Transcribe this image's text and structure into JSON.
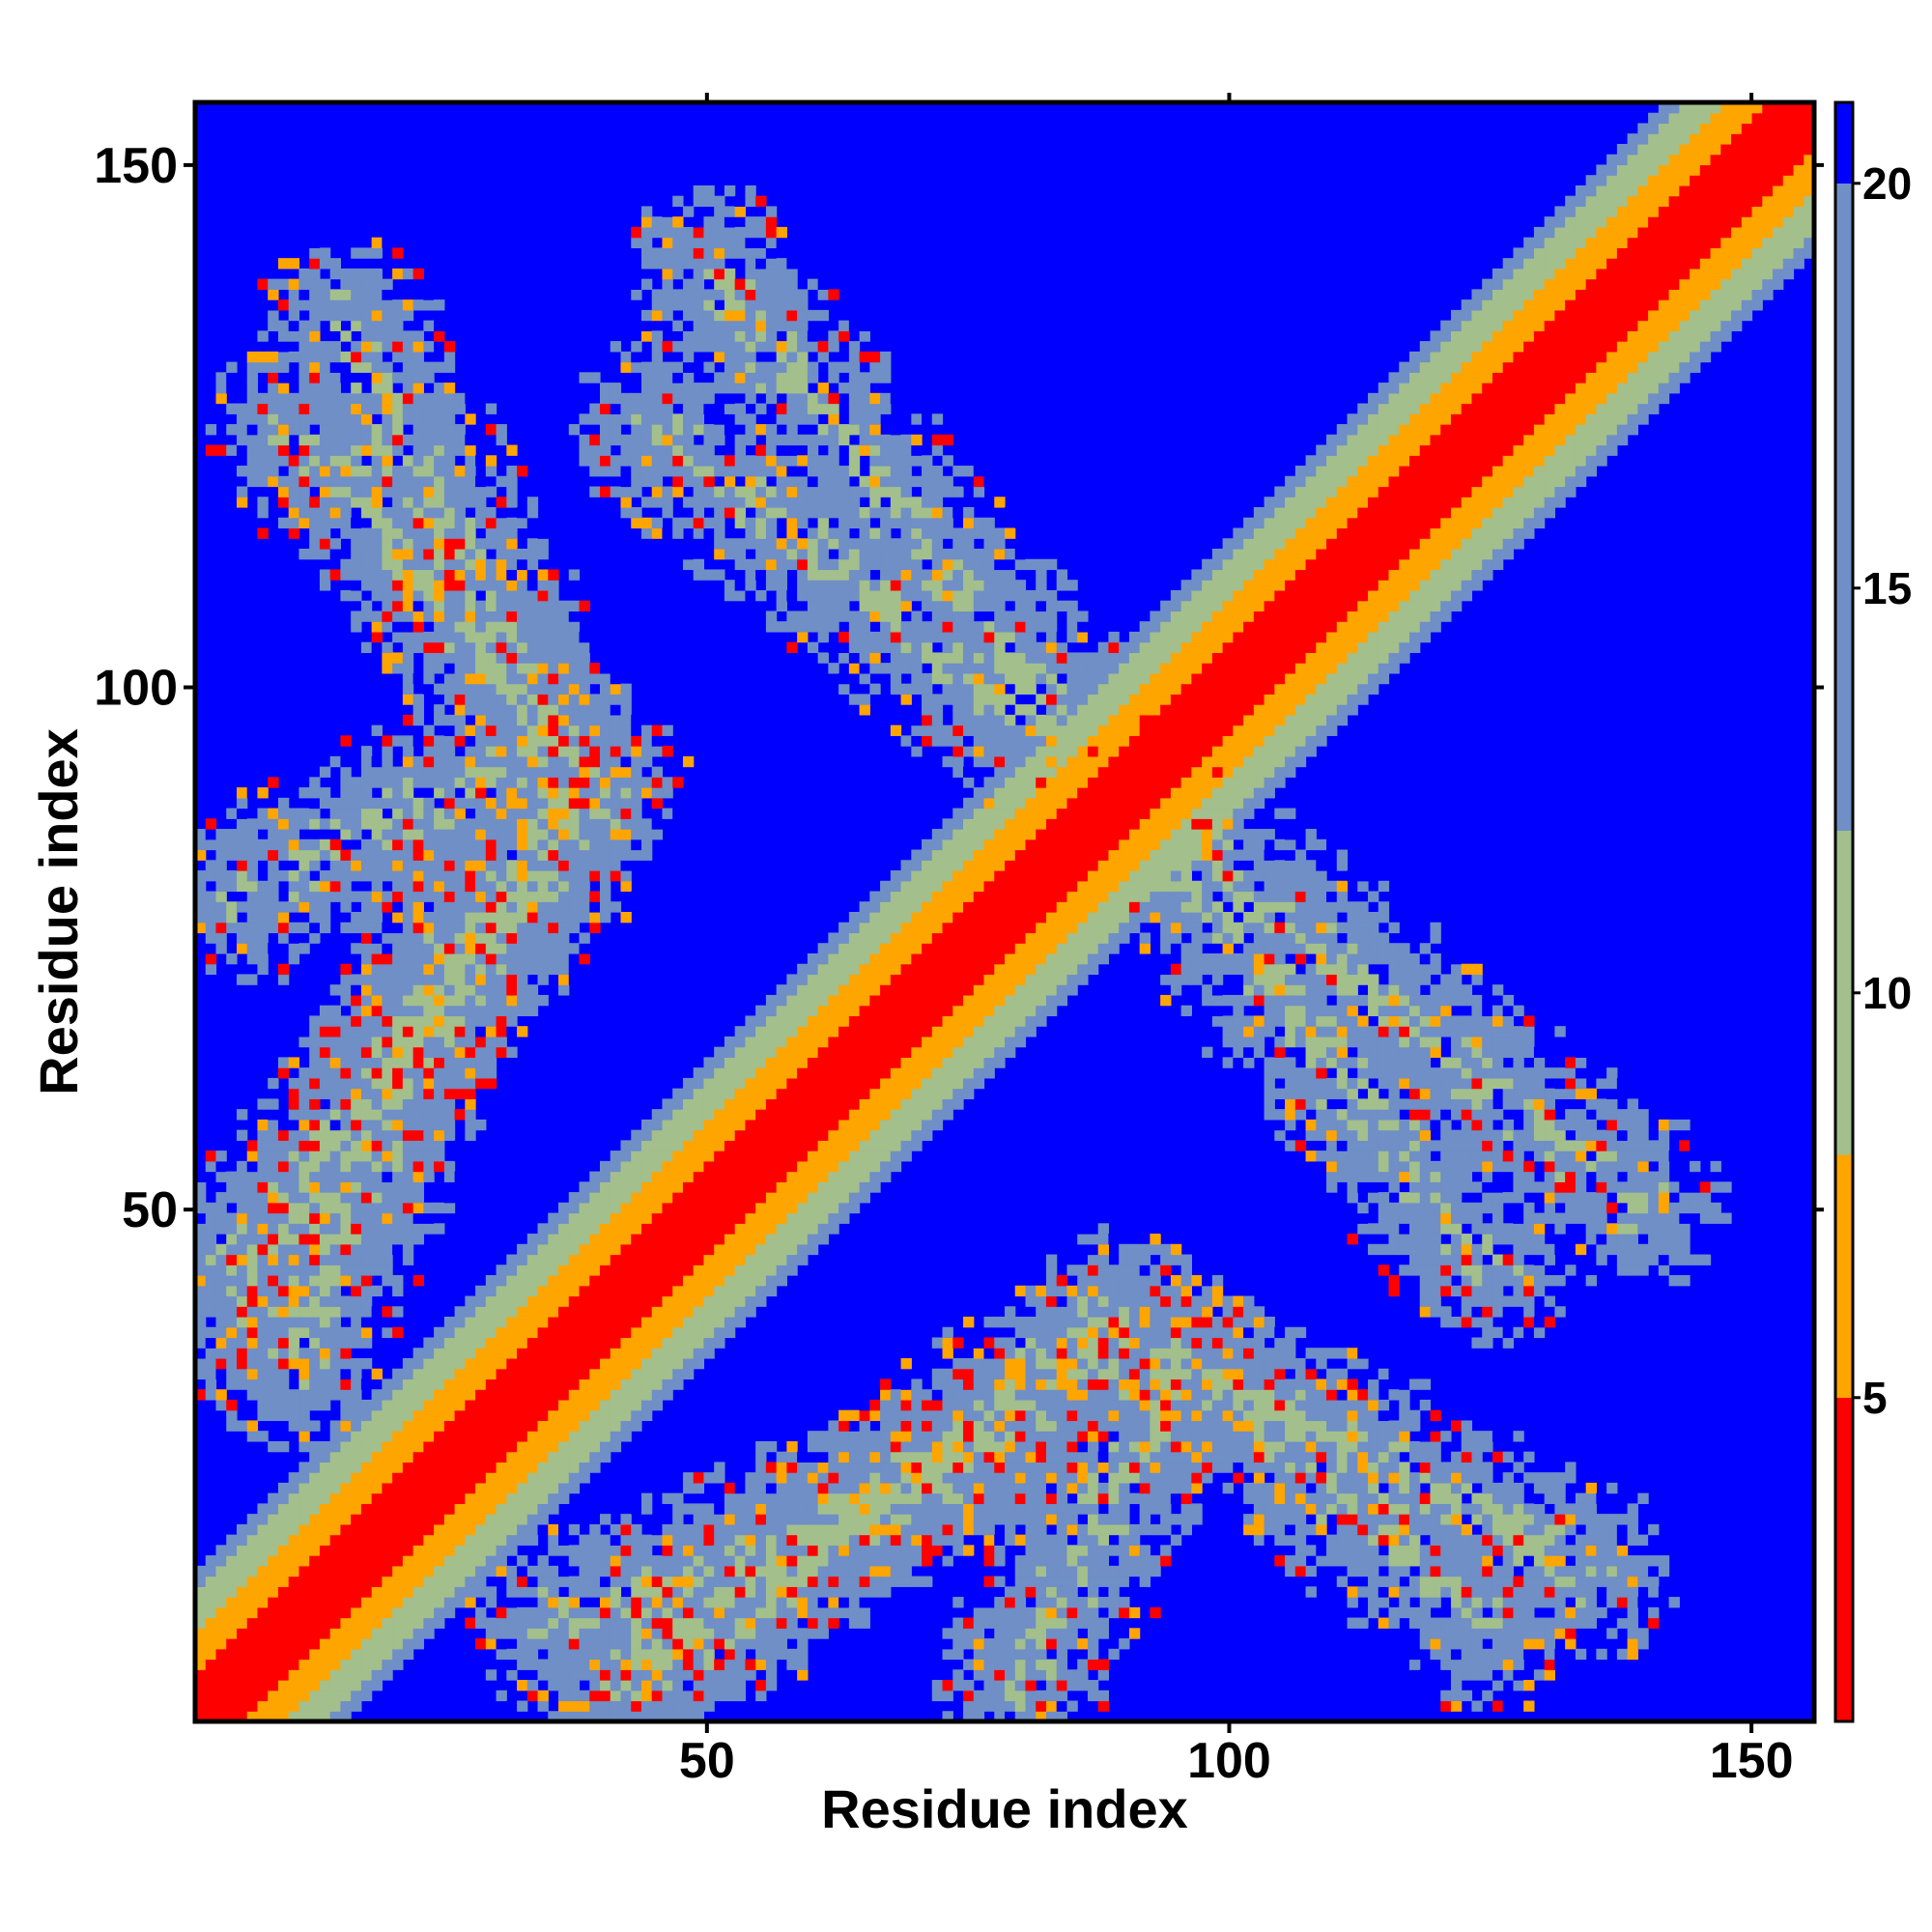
{
  "chart_data": {
    "type": "heatmap",
    "title": "",
    "xlabel": "Residue index",
    "ylabel": "Residue index",
    "n_residues": 156,
    "xlim": [
      1,
      156
    ],
    "ylim": [
      1,
      156
    ],
    "x_ticks": [
      50,
      100,
      150
    ],
    "y_ticks": [
      50,
      100,
      150
    ],
    "x_tick_labels": [
      "50",
      "100",
      "150"
    ],
    "y_tick_labels": [
      "50",
      "100",
      "150"
    ],
    "colorbar": {
      "range": [
        1,
        21
      ],
      "ticks": [
        5,
        10,
        15,
        20
      ],
      "tick_labels": [
        "5",
        "10",
        "15",
        "20"
      ],
      "position": "right"
    },
    "colors": {
      "red": "#ff0000",
      "orange": "#ffa500",
      "sage": "#a3bf8c",
      "steel_blue": "#6f8fc6",
      "blue": "#0000ff"
    },
    "value_bins": [
      {
        "max": 5,
        "color": "#ff0000"
      },
      {
        "max": 8,
        "color": "#ffa500"
      },
      {
        "max": 12,
        "color": "#a3bf8c"
      },
      {
        "max": 20,
        "color": "#6f8fc6"
      },
      {
        "max": 21,
        "color": "#0000ff"
      }
    ],
    "features": [
      {
        "kind": "diagonal",
        "note": "main diagonal i=j, values near 1-4"
      },
      {
        "kind": "band",
        "from": [
          5,
          80
        ],
        "to": [
          35,
          95
        ]
      },
      {
        "kind": "band",
        "from": [
          5,
          45
        ],
        "to": [
          40,
          90
        ]
      },
      {
        "kind": "band",
        "from": [
          45,
          125
        ],
        "to": [
          140,
          50
        ]
      },
      {
        "kind": "band",
        "from": [
          10,
          125
        ],
        "to": [
          32,
          100
        ]
      },
      {
        "kind": "band",
        "from": [
          40,
          5
        ],
        "to": [
          88,
          35
        ]
      },
      {
        "kind": "band",
        "from": [
          35,
          10
        ],
        "to": [
          75,
          25
        ]
      },
      {
        "kind": "band",
        "from": [
          95,
          35
        ],
        "to": [
          135,
          15
        ]
      }
    ]
  }
}
